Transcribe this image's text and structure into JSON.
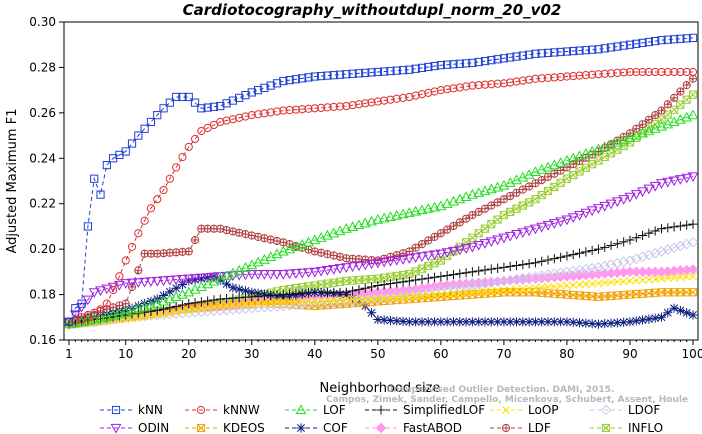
{
  "chart_data": {
    "type": "line",
    "title": "Cardiotocography_withoutdupl_norm_20_v02",
    "xlabel": "Neighborhood size",
    "ylabel": "Adjusted Maximum F1",
    "xlim": [
      1,
      100
    ],
    "ylim": [
      0.16,
      0.3
    ],
    "xticks": [
      1,
      10,
      20,
      30,
      40,
      50,
      60,
      70,
      80,
      90,
      100
    ],
    "yticks": [
      0.16,
      0.18,
      0.2,
      0.22,
      0.24,
      0.26,
      0.28,
      0.3
    ],
    "ytick_labels": [
      "0.16",
      "0.18",
      "0.20",
      "0.22",
      "0.24",
      "0.26",
      "0.28",
      "0.30"
    ],
    "grid": false,
    "legend_position": "bottom",
    "watermark_lines": [
      "Campos, Zimek, Sander, Campello, Micenkova, Schubert, Assent, Houle",
      "Unsupervised Outlier Detection. DAMI, 2015."
    ],
    "series": [
      {
        "name": "kNN",
        "color": "#1f3fd6",
        "marker": "square",
        "points": [
          [
            1,
            0.168
          ],
          [
            2,
            0.174
          ],
          [
            3,
            0.176
          ],
          [
            4,
            0.21
          ],
          [
            5,
            0.231
          ],
          [
            6,
            0.224
          ],
          [
            7,
            0.237
          ],
          [
            8,
            0.24
          ],
          [
            10,
            0.243
          ],
          [
            12,
            0.25
          ],
          [
            14,
            0.256
          ],
          [
            16,
            0.262
          ],
          [
            18,
            0.267
          ],
          [
            20,
            0.267
          ],
          [
            22,
            0.262
          ],
          [
            25,
            0.263
          ],
          [
            30,
            0.269
          ],
          [
            35,
            0.274
          ],
          [
            40,
            0.276
          ],
          [
            45,
            0.277
          ],
          [
            50,
            0.278
          ],
          [
            55,
            0.279
          ],
          [
            60,
            0.281
          ],
          [
            65,
            0.282
          ],
          [
            70,
            0.284
          ],
          [
            75,
            0.286
          ],
          [
            80,
            0.287
          ],
          [
            85,
            0.288
          ],
          [
            90,
            0.29
          ],
          [
            95,
            0.292
          ],
          [
            100,
            0.293
          ]
        ]
      },
      {
        "name": "kNNW",
        "color": "#e03030",
        "marker": "circle",
        "points": [
          [
            1,
            0.168
          ],
          [
            3,
            0.169
          ],
          [
            5,
            0.171
          ],
          [
            7,
            0.176
          ],
          [
            9,
            0.188
          ],
          [
            10,
            0.195
          ],
          [
            12,
            0.207
          ],
          [
            14,
            0.218
          ],
          [
            16,
            0.226
          ],
          [
            18,
            0.236
          ],
          [
            20,
            0.245
          ],
          [
            22,
            0.252
          ],
          [
            25,
            0.256
          ],
          [
            30,
            0.259
          ],
          [
            35,
            0.261
          ],
          [
            40,
            0.262
          ],
          [
            45,
            0.263
          ],
          [
            50,
            0.265
          ],
          [
            55,
            0.267
          ],
          [
            60,
            0.27
          ],
          [
            65,
            0.272
          ],
          [
            70,
            0.273
          ],
          [
            75,
            0.275
          ],
          [
            80,
            0.276
          ],
          [
            85,
            0.277
          ],
          [
            90,
            0.278
          ],
          [
            95,
            0.278
          ],
          [
            100,
            0.278
          ]
        ]
      },
      {
        "name": "LOF",
        "color": "#22dd22",
        "marker": "triangle-up",
        "points": [
          [
            1,
            0.167
          ],
          [
            5,
            0.169
          ],
          [
            10,
            0.172
          ],
          [
            15,
            0.176
          ],
          [
            20,
            0.181
          ],
          [
            25,
            0.187
          ],
          [
            30,
            0.193
          ],
          [
            35,
            0.199
          ],
          [
            40,
            0.204
          ],
          [
            45,
            0.209
          ],
          [
            50,
            0.213
          ],
          [
            55,
            0.216
          ],
          [
            60,
            0.219
          ],
          [
            65,
            0.224
          ],
          [
            70,
            0.228
          ],
          [
            75,
            0.234
          ],
          [
            80,
            0.239
          ],
          [
            85,
            0.244
          ],
          [
            90,
            0.249
          ],
          [
            95,
            0.254
          ],
          [
            100,
            0.259
          ]
        ]
      },
      {
        "name": "SimplifiedLOF",
        "color": "#111111",
        "marker": "plus",
        "points": [
          [
            1,
            0.167
          ],
          [
            5,
            0.169
          ],
          [
            10,
            0.171
          ],
          [
            15,
            0.173
          ],
          [
            20,
            0.176
          ],
          [
            25,
            0.178
          ],
          [
            30,
            0.179
          ],
          [
            35,
            0.18
          ],
          [
            40,
            0.181
          ],
          [
            45,
            0.181
          ],
          [
            50,
            0.184
          ],
          [
            55,
            0.186
          ],
          [
            60,
            0.188
          ],
          [
            65,
            0.19
          ],
          [
            70,
            0.192
          ],
          [
            75,
            0.194
          ],
          [
            80,
            0.197
          ],
          [
            85,
            0.2
          ],
          [
            90,
            0.204
          ],
          [
            95,
            0.209
          ],
          [
            100,
            0.211
          ]
        ]
      },
      {
        "name": "LoOP",
        "color": "#ffe000",
        "marker": "x",
        "points": [
          [
            1,
            0.167
          ],
          [
            5,
            0.168
          ],
          [
            10,
            0.169
          ],
          [
            15,
            0.171
          ],
          [
            20,
            0.173
          ],
          [
            25,
            0.175
          ],
          [
            30,
            0.176
          ],
          [
            35,
            0.177
          ],
          [
            40,
            0.177
          ],
          [
            45,
            0.178
          ],
          [
            50,
            0.178
          ],
          [
            55,
            0.179
          ],
          [
            60,
            0.18
          ],
          [
            65,
            0.181
          ],
          [
            70,
            0.182
          ],
          [
            75,
            0.183
          ],
          [
            80,
            0.184
          ],
          [
            85,
            0.185
          ],
          [
            90,
            0.186
          ],
          [
            95,
            0.187
          ],
          [
            100,
            0.188
          ]
        ]
      },
      {
        "name": "LDOF",
        "color": "#c9c9ea",
        "marker": "diamond",
        "points": [
          [
            1,
            0.167
          ],
          [
            5,
            0.168
          ],
          [
            10,
            0.17
          ],
          [
            15,
            0.171
          ],
          [
            20,
            0.172
          ],
          [
            25,
            0.173
          ],
          [
            30,
            0.174
          ],
          [
            35,
            0.175
          ],
          [
            40,
            0.176
          ],
          [
            45,
            0.177
          ],
          [
            50,
            0.178
          ],
          [
            55,
            0.18
          ],
          [
            60,
            0.182
          ],
          [
            65,
            0.184
          ],
          [
            70,
            0.186
          ],
          [
            75,
            0.188
          ],
          [
            80,
            0.19
          ],
          [
            85,
            0.192
          ],
          [
            90,
            0.195
          ],
          [
            95,
            0.199
          ],
          [
            100,
            0.203
          ]
        ]
      },
      {
        "name": "ODIN",
        "color": "#a020e0",
        "marker": "triangle-down",
        "points": [
          [
            1,
            0.168
          ],
          [
            5,
            0.181
          ],
          [
            10,
            0.185
          ],
          [
            15,
            0.186
          ],
          [
            20,
            0.187
          ],
          [
            25,
            0.188
          ],
          [
            30,
            0.189
          ],
          [
            35,
            0.189
          ],
          [
            40,
            0.19
          ],
          [
            45,
            0.192
          ],
          [
            50,
            0.194
          ],
          [
            55,
            0.196
          ],
          [
            60,
            0.198
          ],
          [
            65,
            0.201
          ],
          [
            70,
            0.205
          ],
          [
            75,
            0.209
          ],
          [
            80,
            0.213
          ],
          [
            85,
            0.218
          ],
          [
            90,
            0.223
          ],
          [
            95,
            0.229
          ],
          [
            100,
            0.232
          ]
        ]
      },
      {
        "name": "KDEOS",
        "color": "#f0a000",
        "marker": "square-x",
        "points": [
          [
            1,
            0.167
          ],
          [
            5,
            0.168
          ],
          [
            10,
            0.17
          ],
          [
            15,
            0.172
          ],
          [
            20,
            0.174
          ],
          [
            25,
            0.175
          ],
          [
            30,
            0.176
          ],
          [
            35,
            0.176
          ],
          [
            40,
            0.175
          ],
          [
            45,
            0.176
          ],
          [
            50,
            0.177
          ],
          [
            55,
            0.178
          ],
          [
            60,
            0.179
          ],
          [
            65,
            0.18
          ],
          [
            70,
            0.181
          ],
          [
            75,
            0.181
          ],
          [
            80,
            0.18
          ],
          [
            85,
            0.179
          ],
          [
            90,
            0.18
          ],
          [
            95,
            0.181
          ],
          [
            100,
            0.181
          ]
        ]
      },
      {
        "name": "COF",
        "color": "#102080",
        "marker": "asterisk",
        "points": [
          [
            1,
            0.168
          ],
          [
            5,
            0.17
          ],
          [
            10,
            0.173
          ],
          [
            15,
            0.178
          ],
          [
            20,
            0.186
          ],
          [
            24,
            0.188
          ],
          [
            27,
            0.183
          ],
          [
            30,
            0.181
          ],
          [
            35,
            0.179
          ],
          [
            40,
            0.181
          ],
          [
            45,
            0.18
          ],
          [
            48,
            0.175
          ],
          [
            50,
            0.169
          ],
          [
            55,
            0.168
          ],
          [
            60,
            0.168
          ],
          [
            65,
            0.168
          ],
          [
            70,
            0.168
          ],
          [
            75,
            0.168
          ],
          [
            80,
            0.168
          ],
          [
            85,
            0.167
          ],
          [
            90,
            0.168
          ],
          [
            95,
            0.17
          ],
          [
            97,
            0.174
          ],
          [
            100,
            0.171
          ]
        ]
      },
      {
        "name": "FastABOD",
        "color": "#ff99ee",
        "marker": "diamond-filled",
        "points": [
          [
            1,
            0.167
          ],
          [
            5,
            0.168
          ],
          [
            10,
            0.17
          ],
          [
            15,
            0.172
          ],
          [
            20,
            0.174
          ],
          [
            25,
            0.175
          ],
          [
            30,
            0.177
          ],
          [
            35,
            0.178
          ],
          [
            40,
            0.179
          ],
          [
            45,
            0.18
          ],
          [
            50,
            0.181
          ],
          [
            55,
            0.182
          ],
          [
            60,
            0.184
          ],
          [
            65,
            0.185
          ],
          [
            70,
            0.186
          ],
          [
            75,
            0.187
          ],
          [
            80,
            0.188
          ],
          [
            85,
            0.189
          ],
          [
            90,
            0.19
          ],
          [
            95,
            0.19
          ],
          [
            100,
            0.191
          ]
        ]
      },
      {
        "name": "LDF",
        "color": "#b04040",
        "marker": "circle-plus",
        "points": [
          [
            1,
            0.168
          ],
          [
            5,
            0.172
          ],
          [
            10,
            0.176
          ],
          [
            13,
            0.198
          ],
          [
            15,
            0.198
          ],
          [
            20,
            0.199
          ],
          [
            22,
            0.209
          ],
          [
            25,
            0.209
          ],
          [
            30,
            0.206
          ],
          [
            35,
            0.203
          ],
          [
            40,
            0.199
          ],
          [
            45,
            0.196
          ],
          [
            50,
            0.195
          ],
          [
            55,
            0.199
          ],
          [
            60,
            0.207
          ],
          [
            65,
            0.215
          ],
          [
            70,
            0.222
          ],
          [
            75,
            0.229
          ],
          [
            80,
            0.236
          ],
          [
            85,
            0.243
          ],
          [
            90,
            0.251
          ],
          [
            95,
            0.261
          ],
          [
            100,
            0.275
          ]
        ]
      },
      {
        "name": "INFLO",
        "color": "#9acd32",
        "marker": "square-x",
        "points": [
          [
            1,
            0.167
          ],
          [
            5,
            0.168
          ],
          [
            10,
            0.17
          ],
          [
            15,
            0.172
          ],
          [
            20,
            0.174
          ],
          [
            25,
            0.176
          ],
          [
            30,
            0.179
          ],
          [
            35,
            0.182
          ],
          [
            40,
            0.184
          ],
          [
            45,
            0.186
          ],
          [
            50,
            0.187
          ],
          [
            55,
            0.189
          ],
          [
            60,
            0.195
          ],
          [
            65,
            0.205
          ],
          [
            70,
            0.215
          ],
          [
            75,
            0.222
          ],
          [
            80,
            0.231
          ],
          [
            85,
            0.239
          ],
          [
            90,
            0.247
          ],
          [
            95,
            0.257
          ],
          [
            100,
            0.268
          ]
        ]
      }
    ]
  }
}
